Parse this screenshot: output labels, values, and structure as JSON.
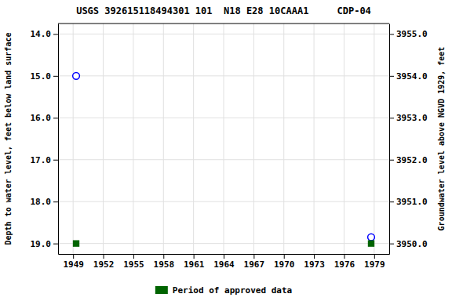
{
  "chart_data": {
    "type": "scatter",
    "title": "USGS 392615118494301 101  N18 E28 10CAAA1     CDP-04",
    "ylabel": "Depth to water level, feet below land surface",
    "y2label": "Groundwater level above NGVD 1929, feet",
    "x": [
      1949.3,
      1978.7
    ],
    "series": [
      {
        "values": [
          15.0,
          18.85
        ],
        "color": "#0000ff",
        "marker": "circle"
      },
      {
        "name": "Period of approved data",
        "values": [
          19.0,
          19.0
        ],
        "color": "#006400",
        "marker": "square"
      }
    ],
    "xlim": [
      1947.5,
      1980.5
    ],
    "xticks": [
      1949,
      1952,
      1955,
      1958,
      1961,
      1964,
      1967,
      1970,
      1973,
      1976,
      1979
    ],
    "ylim": [
      19.25,
      13.75
    ],
    "yticks": [
      {
        "value": 14.0,
        "label": "14.0"
      },
      {
        "value": 15.0,
        "label": "15.0"
      },
      {
        "value": 16.0,
        "label": "16.0"
      },
      {
        "value": 17.0,
        "label": "17.0"
      },
      {
        "value": 18.0,
        "label": "18.0"
      },
      {
        "value": 19.0,
        "label": "19.0"
      }
    ],
    "y2lim": [
      3949.75,
      3955.25
    ],
    "y2ticks": [
      {
        "value": 3950.0,
        "label": "3950.0"
      },
      {
        "value": 3951.0,
        "label": "3951.0"
      },
      {
        "value": 3952.0,
        "label": "3952.0"
      },
      {
        "value": 3953.0,
        "label": "3953.0"
      },
      {
        "value": 3954.0,
        "label": "3954.0"
      },
      {
        "value": 3955.0,
        "label": "3955.0"
      }
    ],
    "grid": true,
    "legend": "bottom"
  }
}
